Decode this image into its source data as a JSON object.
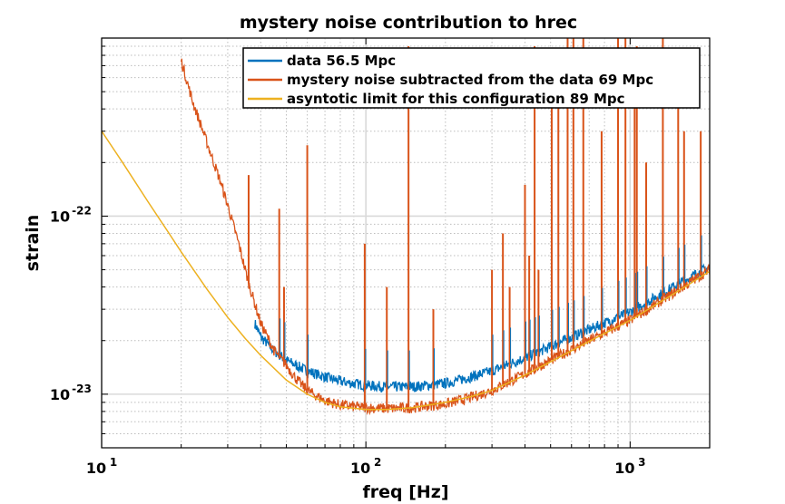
{
  "chart_data": {
    "type": "line",
    "title": "mystery noise contribution to hrec",
    "xlabel": "freq [Hz]",
    "ylabel": "strain",
    "xscale": "log",
    "yscale": "log",
    "xlim": [
      10,
      2000
    ],
    "ylim": [
      5e-24,
      1e-21
    ],
    "grid": true,
    "legend_position": "top-right",
    "x_ticks": [
      {
        "base": "10",
        "exp": "1"
      },
      {
        "base": "10",
        "exp": "2"
      },
      {
        "base": "10",
        "exp": "3"
      }
    ],
    "y_ticks": [
      {
        "base": "10",
        "exp": "-22",
        "value": 1e-22
      },
      {
        "base": "10",
        "exp": "-23",
        "value": 1e-23
      }
    ],
    "series": [
      {
        "name": "data 56.5 Mpc",
        "color": "#0072BD",
        "x": [
          38,
          40,
          45,
          50,
          60,
          70,
          80,
          100,
          120,
          150,
          200,
          250,
          300,
          400,
          500,
          700,
          1000,
          1500,
          2000
        ],
        "y": [
          2.5e-23,
          2.1e-23,
          1.75e-23,
          1.55e-23,
          1.35e-23,
          1.25e-23,
          1.18e-23,
          1.12e-23,
          1.1e-23,
          1.1e-23,
          1.15e-23,
          1.25e-23,
          1.35e-23,
          1.6e-23,
          1.85e-23,
          2.3e-23,
          2.9e-23,
          4.1e-23,
          5.2e-23
        ]
      },
      {
        "name": "mystery noise subtracted from the data 69 Mpc",
        "color": "#D95319",
        "x": [
          20,
          22,
          25,
          28,
          30,
          33,
          36,
          40,
          45,
          50,
          55,
          60,
          70,
          80,
          100,
          120,
          150,
          200,
          250,
          300,
          400,
          500,
          700,
          1000,
          1500,
          2000
        ],
        "y": [
          7.5e-22,
          4.5e-22,
          2.6e-22,
          1.6e-22,
          1.15e-22,
          7e-23,
          4.2e-23,
          2.5e-23,
          1.75e-23,
          1.45e-23,
          1.2e-23,
          1.05e-23,
          9.2e-24,
          8.7e-24,
          8.4e-24,
          8.3e-24,
          8.4e-24,
          8.8e-24,
          9.6e-24,
          1.05e-23,
          1.3e-23,
          1.55e-23,
          2e-23,
          2.6e-23,
          3.8e-23,
          5e-23
        ]
      },
      {
        "name": "asyntotic limit for this configuration 89 Mpc",
        "color": "#EDB120",
        "x": [
          10,
          12,
          15,
          18,
          20,
          25,
          30,
          35,
          40,
          50,
          60,
          70,
          80,
          100,
          120,
          150,
          200,
          250,
          300,
          400,
          500,
          700,
          1000,
          1500,
          2000
        ],
        "y": [
          3e-22,
          2e-22,
          1.2e-22,
          8e-23,
          6.3e-23,
          3.9e-23,
          2.7e-23,
          2.05e-23,
          1.65e-23,
          1.2e-23,
          1e-23,
          9e-24,
          8.5e-24,
          8.2e-24,
          8.2e-24,
          8.4e-24,
          9e-24,
          9.7e-24,
          1.05e-23,
          1.28e-23,
          1.52e-23,
          1.98e-23,
          2.6e-23,
          3.75e-23,
          4.9e-23
        ]
      }
    ],
    "lines_peaks": {
      "x": [
        36,
        47,
        49,
        60,
        99,
        120,
        145,
        180,
        300,
        330,
        350,
        400,
        415,
        435,
        450,
        505,
        535,
        580,
        610,
        665,
        780,
        900,
        960,
        1040,
        1060,
        1150,
        1330,
        1520,
        1600,
        1850
      ],
      "y": [
        1.7e-22,
        1.1e-22,
        4e-23,
        2.5e-22,
        7e-23,
        4e-23,
        9e-22,
        3e-23,
        5e-23,
        8e-23,
        4e-23,
        1.5e-22,
        6e-23,
        9e-22,
        5e-23,
        7e-22,
        8e-22,
        1e-21,
        1e-21,
        1e-21,
        3e-22,
        1e-21,
        1e-21,
        5e-22,
        9e-22,
        2e-22,
        1e-21,
        7e-22,
        3e-22,
        3e-22
      ]
    }
  }
}
